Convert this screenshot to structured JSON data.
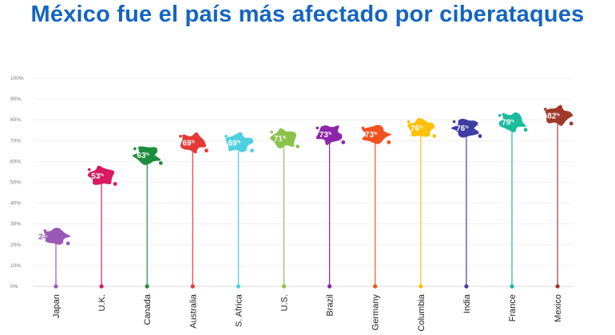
{
  "page": {
    "title": "México fue el país más afectado por ciberataques"
  },
  "colors": {
    "title": "#1565c0",
    "grid": "#eeeeee",
    "axis": "#cccccc"
  },
  "chart_data": {
    "type": "scatter",
    "title": "México fue el país más afectado por ciberataques",
    "xlabel": "",
    "ylabel": "",
    "ylim": [
      0,
      100
    ],
    "yticks": [
      0,
      10,
      20,
      30,
      40,
      50,
      60,
      70,
      80,
      90,
      100
    ],
    "ytick_suffix": "%",
    "value_suffix": "%",
    "grid": true,
    "categories": [
      "Japan",
      "U.K.",
      "Canada",
      "Australia",
      "S. Africa",
      "U.S.",
      "Brazil",
      "Germany",
      "Columbia",
      "India",
      "France",
      "Mexico"
    ],
    "values": [
      24,
      53,
      63,
      69,
      69,
      71,
      73,
      73,
      76,
      76,
      79,
      82
    ],
    "colors": [
      "#9b59b6",
      "#d81b60",
      "#1e8e3e",
      "#e53935",
      "#4dd0e1",
      "#8bc34a",
      "#8e24aa",
      "#f4511e",
      "#ffc107",
      "#3f3da3",
      "#1abc9c",
      "#a0392b"
    ],
    "marker": "country-map-silhouette"
  }
}
